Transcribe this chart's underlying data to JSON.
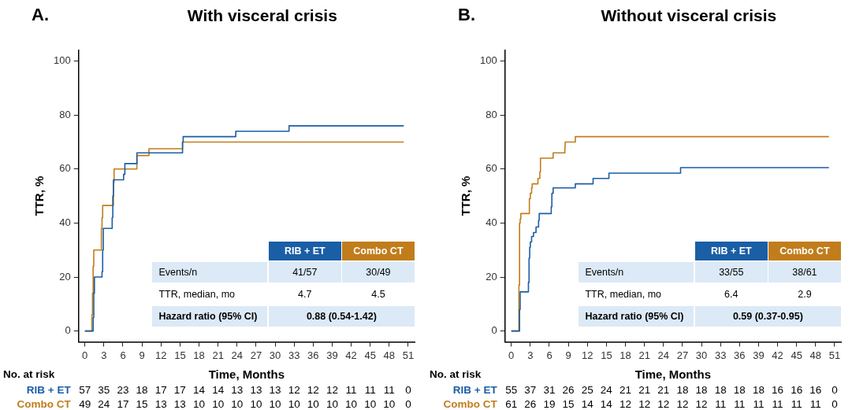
{
  "chart_data": [
    {
      "type": "step",
      "title": "With visceral crisis",
      "xlabel": "Time, Months",
      "ylabel": "TTR, %",
      "xlim": [
        -1,
        52
      ],
      "ylim": [
        -4,
        104
      ],
      "xticks": [
        0,
        3,
        6,
        9,
        12,
        15,
        18,
        21,
        24,
        27,
        30,
        33,
        36,
        39,
        42,
        45,
        48,
        51
      ],
      "yticks": [
        0,
        20,
        40,
        60,
        80,
        100
      ],
      "grid": false,
      "legend": false,
      "annotations": [
        "A.",
        "No. at risk",
        "57 35 23 18 17 17 14 14 13 13 13 12 12 12 11 11 11 0",
        "49 24 17 15 13 13 10 10 10 10 10 10 10 10 10 10 10 0",
        "Events/n",
        "41/57",
        "30/49",
        "TTR, median, mo",
        "4.7",
        "4.5",
        "Hazard ratio (95% CI)",
        "0.88 (0.54-1.42)"
      ],
      "series": [
        {
          "name": "RIB + ET",
          "color": "#1a5ea6",
          "x": [
            0,
            1.3,
            1.4,
            1.5,
            2.7,
            2.8,
            2.9,
            4.3,
            4.4,
            4.5,
            6.1,
            6.3,
            8.2,
            15.4,
            15.5,
            23.8,
            32.2,
            50.3
          ],
          "values": [
            0,
            5,
            14,
            20,
            22,
            30,
            38,
            42,
            50,
            56,
            58,
            62,
            66,
            70,
            72,
            74,
            76,
            76
          ]
        },
        {
          "name": "Combo CT",
          "color": "#c17d1c",
          "x": [
            0,
            1.1,
            1.2,
            1.3,
            1.4,
            2.6,
            2.7,
            2.8,
            4.5,
            4.6,
            8.2,
            10.1,
            15.4,
            50.3
          ],
          "values": [
            0,
            6,
            14,
            24,
            30,
            38,
            42,
            46.5,
            55,
            60,
            65,
            67.5,
            70,
            70
          ]
        }
      ]
    },
    {
      "type": "step",
      "title": "Without visceral crisis",
      "xlabel": "Time, Months",
      "ylabel": "TTR, %",
      "xlim": [
        -1,
        52
      ],
      "ylim": [
        -4,
        104
      ],
      "xticks": [
        0,
        3,
        6,
        9,
        12,
        15,
        18,
        21,
        24,
        27,
        30,
        33,
        36,
        39,
        42,
        45,
        48,
        51
      ],
      "yticks": [
        0,
        20,
        40,
        60,
        80,
        100
      ],
      "grid": false,
      "legend": false,
      "annotations": [
        "B.",
        "No. at risk",
        "55 37 31 26 25 24 21 21 21 18 18 18 18 18 16 16 16 0",
        "61 26 19 15 14 14 12 12 12 12 12 11 11 11 11 11 11 0",
        "Events/n",
        "33/55",
        "38/61",
        "TTR, median, mo",
        "6.4",
        "2.9",
        "Hazard ratio (95% CI)",
        "0.59 (0.37-0.95)"
      ],
      "series": [
        {
          "name": "RIB + ET",
          "color": "#1a5ea6",
          "x": [
            0,
            1.3,
            1.4,
            2.7,
            2.8,
            2.9,
            3.0,
            3.2,
            3.5,
            3.9,
            4.3,
            4.4,
            6.3,
            6.4,
            6.6,
            10.1,
            12.9,
            15.4,
            26.7,
            50.1
          ],
          "values": [
            0,
            8,
            14.5,
            18,
            27,
            31,
            33,
            35,
            36.5,
            38.5,
            41,
            43.5,
            46,
            51,
            53,
            54.5,
            56.5,
            58.5,
            60.5,
            60.5
          ]
        },
        {
          "name": "Combo CT",
          "color": "#c17d1c",
          "x": [
            0,
            1.2,
            1.3,
            1.4,
            1.5,
            1.7,
            2.85,
            3.0,
            3.2,
            3.3,
            4.2,
            4.5,
            4.6,
            6.6,
            8.45,
            8.5,
            10.1,
            50.1
          ],
          "values": [
            0,
            17,
            40,
            41.5,
            43.5,
            43.5,
            49,
            51,
            53,
            54.5,
            56.5,
            59,
            64,
            66,
            68,
            70,
            72,
            72
          ]
        }
      ]
    }
  ]
}
